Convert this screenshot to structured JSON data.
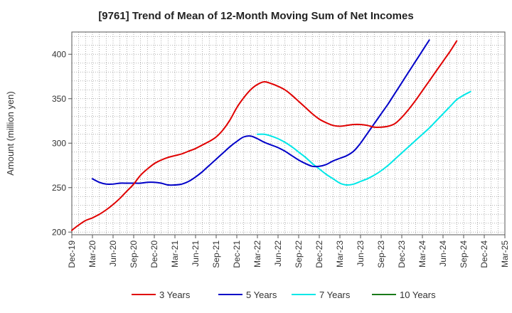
{
  "chart_data": {
    "type": "line",
    "title": "[9761]  Trend of Mean of 12-Month Moving Sum of Net Incomes",
    "ylabel": "Amount (million yen)",
    "xlabel": "",
    "ylim": [
      197,
      425
    ],
    "yticks": [
      200,
      250,
      300,
      350,
      400
    ],
    "x_ticks": [
      "Dec-19",
      "Mar-20",
      "Jun-20",
      "Sep-20",
      "Dec-20",
      "Mar-21",
      "Jun-21",
      "Sep-21",
      "Dec-21",
      "Mar-22",
      "Jun-22",
      "Sep-22",
      "Dec-22",
      "Mar-23",
      "Jun-23",
      "Sep-23",
      "Dec-23",
      "Mar-24",
      "Jun-24",
      "Sep-24",
      "Dec-24",
      "Mar-25"
    ],
    "grid": true,
    "legend_position": "bottom",
    "series": [
      {
        "name": "3 Years",
        "color": "#e00000",
        "start_index": 0,
        "values": [
          202,
          208,
          213,
          216,
          220,
          225,
          231,
          238,
          246,
          254,
          264,
          271,
          277,
          281,
          284,
          286,
          288,
          291,
          294,
          298,
          302,
          307,
          315,
          326,
          340,
          351,
          360,
          366,
          369,
          367,
          364,
          360,
          354,
          347,
          340,
          333,
          327,
          323,
          320,
          319,
          320,
          321,
          321,
          320,
          318,
          318,
          319,
          322,
          329,
          338,
          348,
          359,
          370,
          381,
          392,
          403,
          415
        ]
      },
      {
        "name": "5 Years",
        "color": "#0000c8",
        "start_index": 3,
        "values": [
          260,
          256,
          254,
          254,
          255,
          255,
          255,
          255,
          256,
          256,
          255,
          253,
          253,
          254,
          257,
          262,
          268,
          275,
          282,
          289,
          296,
          302,
          307,
          308,
          305,
          301,
          298,
          295,
          291,
          286,
          281,
          277,
          274,
          274,
          276,
          280,
          283,
          286,
          291,
          300,
          311,
          322,
          333,
          344,
          356,
          368,
          380,
          392,
          404,
          416
        ]
      },
      {
        "name": "7 Years",
        "color": "#00e8e8",
        "start_index": 27,
        "values": [
          310,
          310,
          308,
          305,
          301,
          296,
          290,
          284,
          277,
          271,
          265,
          260,
          255,
          253,
          254,
          257,
          260,
          264,
          269,
          275,
          282,
          289,
          296,
          303,
          310,
          317,
          325,
          333,
          341,
          349,
          354,
          358
        ]
      },
      {
        "name": "10 Years",
        "color": "#1a7a1a",
        "start_index": 0,
        "values": []
      }
    ]
  }
}
